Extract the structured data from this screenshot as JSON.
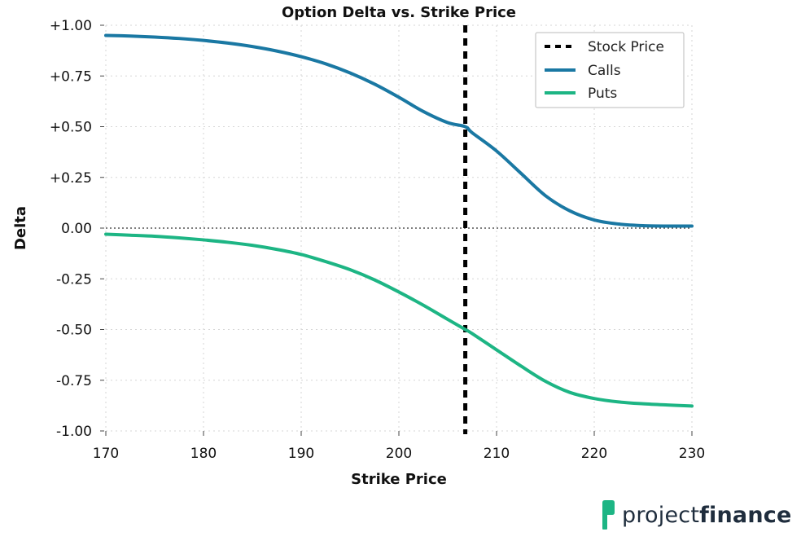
{
  "chart_data": {
    "type": "line",
    "title": "Option Delta vs. Strike Price",
    "xlabel": "Strike Price",
    "ylabel": "Delta",
    "xlim": [
      170,
      230
    ],
    "ylim": [
      -1.0,
      1.0
    ],
    "xticks": [
      170,
      180,
      190,
      200,
      210,
      220,
      230
    ],
    "yticks": [
      {
        "value": 1.0,
        "label": "+1.00"
      },
      {
        "value": 0.75,
        "label": "+0.75"
      },
      {
        "value": 0.5,
        "label": "+0.50"
      },
      {
        "value": 0.25,
        "label": "+0.25"
      },
      {
        "value": 0.0,
        "label": "0.00"
      },
      {
        "value": -0.25,
        "label": "-0.25"
      },
      {
        "value": -0.5,
        "label": "-0.50"
      },
      {
        "value": -0.75,
        "label": "-0.75"
      },
      {
        "value": -1.0,
        "label": "-1.00"
      }
    ],
    "grid": true,
    "legend_position": "top-right",
    "stock_price": 206.8,
    "x": [
      170,
      172.5,
      175,
      177.5,
      180,
      182.5,
      185,
      187.5,
      190,
      192.5,
      195,
      197.5,
      200,
      202.5,
      205,
      206.8,
      207.5,
      210,
      212.5,
      215,
      217.5,
      220,
      222.5,
      225,
      227.5,
      230
    ],
    "series": [
      {
        "name": "Stock Price",
        "style": "dashed-vertical",
        "color": "#000000",
        "x_value": 206.8
      },
      {
        "name": "Calls",
        "color": "#1a78a3",
        "values": [
          0.95,
          0.947,
          0.942,
          0.935,
          0.925,
          0.912,
          0.895,
          0.873,
          0.845,
          0.81,
          0.765,
          0.71,
          0.645,
          0.575,
          0.52,
          0.5,
          0.47,
          0.38,
          0.27,
          0.16,
          0.085,
          0.04,
          0.02,
          0.012,
          0.01,
          0.01
        ]
      },
      {
        "name": "Puts",
        "color": "#1db584",
        "values": [
          -0.03,
          -0.035,
          -0.04,
          -0.048,
          -0.058,
          -0.07,
          -0.085,
          -0.105,
          -0.13,
          -0.165,
          -0.205,
          -0.255,
          -0.315,
          -0.38,
          -0.45,
          -0.5,
          -0.52,
          -0.6,
          -0.68,
          -0.755,
          -0.81,
          -0.84,
          -0.857,
          -0.866,
          -0.872,
          -0.877
        ]
      }
    ]
  },
  "branding": {
    "logo_text_light": "project",
    "logo_text_bold": "finance",
    "logo_color": "#1db584"
  }
}
